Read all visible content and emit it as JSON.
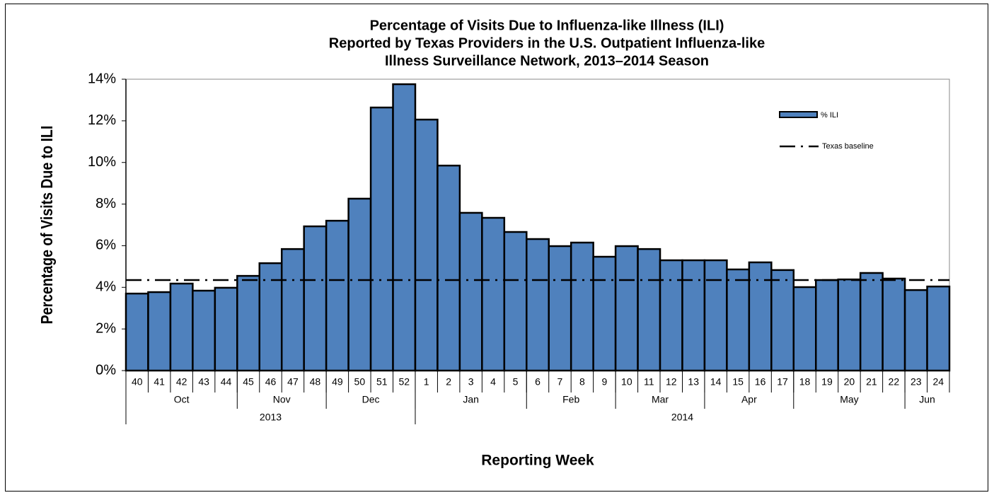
{
  "chart_data": {
    "type": "bar",
    "title": [
      "Percentage of Visits Due to Influenza-like Illness (ILI)",
      "Reported by Texas Providers in the U.S. Outpatient Influenza-like",
      "Illness Surveillance Network, 2013–2014 Season"
    ],
    "x_label": "Reporting Week",
    "y_label": "Percentage of Visits Due to ILI",
    "categories": [
      "40",
      "41",
      "42",
      "43",
      "44",
      "45",
      "46",
      "47",
      "48",
      "49",
      "50",
      "51",
      "52",
      "1",
      "2",
      "3",
      "4",
      "5",
      "6",
      "7",
      "8",
      "9",
      "10",
      "11",
      "12",
      "13",
      "14",
      "15",
      "16",
      "17",
      "18",
      "19",
      "20",
      "21",
      "22",
      "23",
      "24"
    ],
    "months": [
      "Oct",
      null,
      null,
      null,
      null,
      "Nov",
      null,
      null,
      null,
      "Dec",
      null,
      null,
      null,
      "Jan",
      null,
      null,
      null,
      null,
      "Feb",
      null,
      null,
      null,
      "Mar",
      null,
      null,
      null,
      "Apr",
      null,
      null,
      null,
      "May",
      null,
      null,
      null,
      null,
      "Jun",
      null
    ],
    "years": [
      "2013",
      null,
      null,
      null,
      null,
      null,
      null,
      null,
      null,
      null,
      null,
      null,
      null,
      "2014",
      null,
      null,
      null,
      null,
      null,
      null,
      null,
      null,
      null,
      null,
      null,
      null,
      null,
      null,
      null,
      null,
      null,
      null,
      null,
      null,
      null,
      null,
      null
    ],
    "series": [
      {
        "name": "% ILI",
        "color": "#4f81bd",
        "values": [
          3.7,
          3.77,
          4.18,
          3.84,
          3.98,
          4.55,
          5.16,
          5.84,
          6.93,
          7.2,
          8.26,
          12.64,
          13.76,
          12.06,
          9.85,
          7.58,
          7.34,
          6.66,
          6.32,
          5.98,
          6.15,
          5.47,
          5.98,
          5.84,
          5.3,
          5.3,
          5.3,
          4.86,
          5.2,
          4.83,
          4.01,
          4.35,
          4.38,
          4.69,
          4.42,
          3.87,
          4.04
        ]
      }
    ],
    "baseline": {
      "name": "Texas baseline",
      "value": 4.35,
      "color": "#000000"
    },
    "ylim": [
      0,
      14
    ],
    "yticks": [
      {
        "value": 0,
        "label": "0%"
      },
      {
        "value": 2,
        "label": "2%"
      },
      {
        "value": 4,
        "label": "4%"
      },
      {
        "value": 6,
        "label": "6%"
      },
      {
        "value": 8,
        "label": "8%"
      },
      {
        "value": 10,
        "label": "10%"
      },
      {
        "value": 12,
        "label": "12%"
      },
      {
        "value": 14,
        "label": "14%"
      }
    ],
    "legend": "top-right"
  }
}
